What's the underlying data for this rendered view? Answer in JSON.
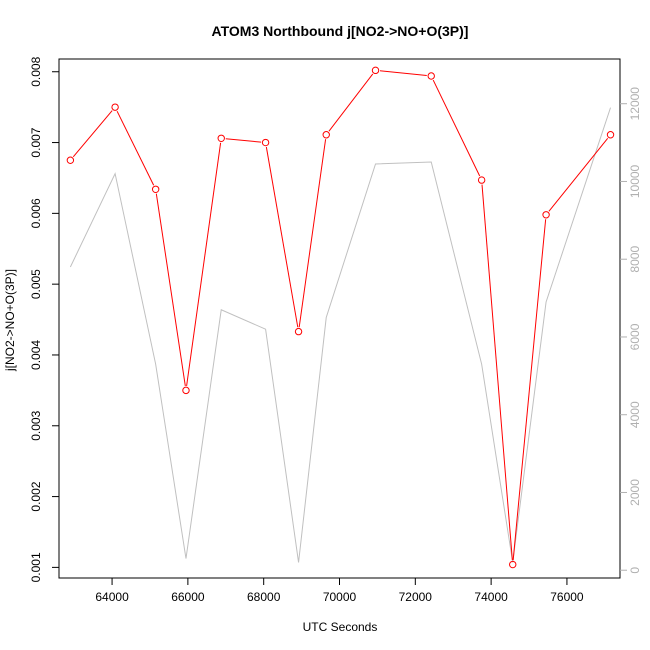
{
  "chart_data": {
    "type": "line",
    "title": "ATOM3 Northbound j[NO2->NO+O(3P)]",
    "xlabel": "UTC Seconds",
    "ylabel": "j[NO2->NO+O(3P)]",
    "xlim": [
      62600,
      77400
    ],
    "ylim": [
      0.00085,
      0.00818
    ],
    "y2lim": [
      -200,
      13150
    ],
    "x_ticks": [
      64000,
      66000,
      68000,
      70000,
      72000,
      74000,
      76000
    ],
    "y_ticks": [
      0.001,
      0.002,
      0.003,
      0.004,
      0.005,
      0.006,
      0.007,
      0.008
    ],
    "y2_ticks": [
      0,
      2000,
      4000,
      6000,
      8000,
      10000,
      12000
    ],
    "grid": false,
    "series": [
      {
        "axis": "left",
        "color": "#ff0000",
        "markers": true,
        "x": [
          62900,
          64080,
          65150,
          65950,
          66880,
          68050,
          68920,
          69650,
          70950,
          72420,
          73750,
          74570,
          75450,
          77150
        ],
        "values": [
          0.00675,
          0.0075,
          0.00634,
          0.0035,
          0.00706,
          0.007,
          0.00433,
          0.00711,
          0.00802,
          0.00794,
          0.00647,
          0.00104,
          0.00598,
          0.00711
        ]
      },
      {
        "axis": "right",
        "color": "#c0c0c0",
        "markers": false,
        "x": [
          62900,
          64080,
          65150,
          65950,
          66880,
          68050,
          68920,
          69650,
          70950,
          72420,
          73750,
          74570,
          75450,
          77150
        ],
        "values": [
          7800,
          10200,
          5300,
          300,
          6700,
          6200,
          200,
          6500,
          10450,
          10500,
          5300,
          200,
          6900,
          11900
        ]
      }
    ]
  }
}
